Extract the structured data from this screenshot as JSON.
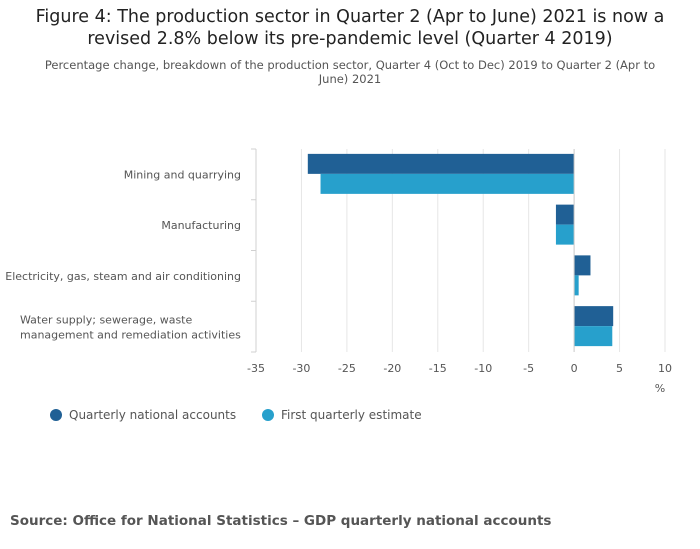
{
  "title_line1": "Figure 4: The production sector in Quarter 2 (Apr to June) 2021 is now a",
  "title_line2": "revised 2.8% below its pre-pandemic level (Quarter 4 2019)",
  "subtitle": "Percentage change, breakdown of the production sector, Quarter 4 (Oct to Dec) 2019 to Quarter 2 (Apr to June) 2021",
  "source": "Source: Office for National Statistics – GDP quarterly national accounts",
  "colors": {
    "series1": "#206095",
    "series2": "#27a0cc",
    "grid": "#e6e6e6",
    "axis": "#d0d0d0"
  },
  "chart_data": {
    "type": "bar",
    "orientation": "horizontal",
    "categories": [
      [
        "Mining and quarrying"
      ],
      [
        "Manufacturing"
      ],
      [
        "Electricity, gas, steam and air conditioning"
      ],
      [
        "Water supply; sewerage, waste",
        "management and remediation activities"
      ]
    ],
    "series": [
      {
        "name": "Quarterly national accounts",
        "values": [
          -29.3,
          -2.0,
          1.8,
          4.3
        ]
      },
      {
        "name": "First quarterly estimate",
        "values": [
          -27.9,
          -2.0,
          0.5,
          4.2
        ]
      }
    ],
    "xlim": [
      -35,
      10
    ],
    "xticks": [
      -35,
      -30,
      -25,
      -20,
      -15,
      -10,
      -5,
      0,
      5,
      10
    ],
    "xlabel": "%",
    "legend_position": "bottom-left"
  }
}
